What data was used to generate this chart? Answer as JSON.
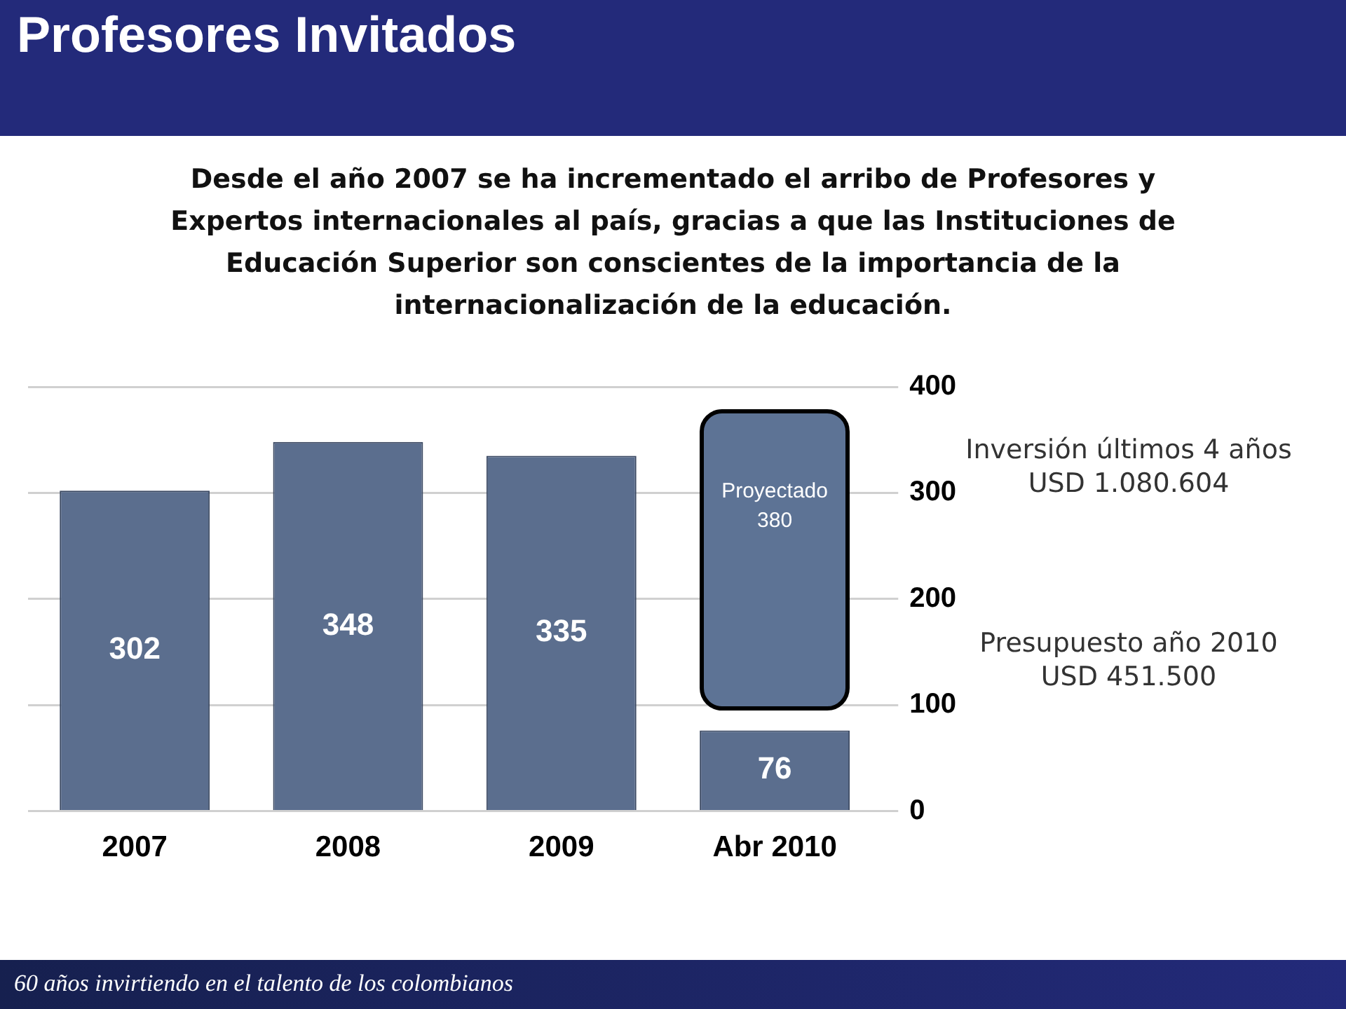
{
  "chart_data": {
    "type": "bar",
    "title": "Profesores Invitados",
    "subtitle": "Desde el año 2007 se ha incrementado el arribo de Profesores y Expertos internacionales al país, gracias a que las Instituciones de Educación Superior son conscientes de la importancia de la internacionalización de la educación.",
    "categories": [
      "2007",
      "2008",
      "2009",
      "Abr 2010"
    ],
    "values": [
      302,
      348,
      335,
      76
    ],
    "color": "#5b6e8e",
    "ylim": [
      0,
      400
    ],
    "yticks": [
      0,
      100,
      200,
      300,
      400
    ],
    "grid": "y",
    "data_labels": true,
    "annotations": [
      "Proyectado 380",
      "Inversión últimos 4 años USD 1.080.604",
      "Presupuesto año 2010 USD 451.500",
      "60 años invirtiendo en el talento de los colombianos"
    ]
  }
}
